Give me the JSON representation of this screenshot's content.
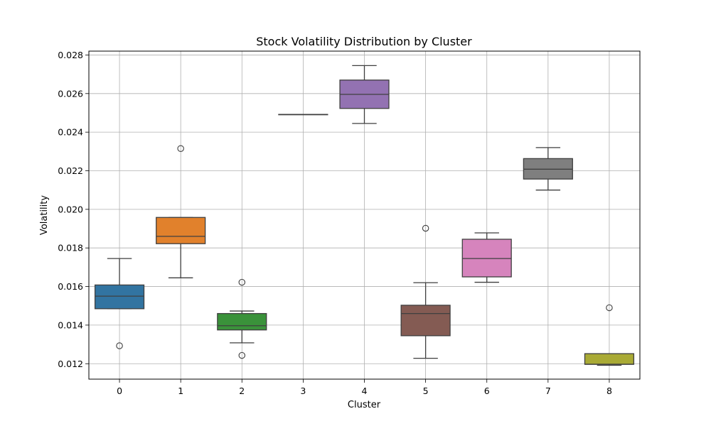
{
  "chart_data": {
    "type": "box",
    "title": "Stock Volatility Distribution by Cluster",
    "xlabel": "Cluster",
    "ylabel": "Volatility",
    "ylim": [
      0.0112,
      0.0282
    ],
    "yticks": [
      "0.012",
      "0.014",
      "0.016",
      "0.018",
      "0.020",
      "0.022",
      "0.024",
      "0.026",
      "0.028"
    ],
    "grid": true,
    "categories": [
      "0",
      "1",
      "2",
      "3",
      "4",
      "5",
      "6",
      "7",
      "8"
    ],
    "boxes": [
      {
        "category": "0",
        "color": "#3274a1",
        "whisker_low": 0.01485,
        "q1": 0.01485,
        "median": 0.0155,
        "q3": 0.01608,
        "whisker_high": 0.01745,
        "outliers": [
          0.01293
        ]
      },
      {
        "category": "1",
        "color": "#e1812c",
        "whisker_low": 0.01645,
        "q1": 0.01822,
        "median": 0.0186,
        "q3": 0.01958,
        "whisker_high": 0.01958,
        "outliers": [
          0.02315
        ]
      },
      {
        "category": "2",
        "color": "#3a923a",
        "whisker_low": 0.01308,
        "q1": 0.01375,
        "median": 0.01397,
        "q3": 0.0146,
        "whisker_high": 0.01473,
        "outliers": [
          0.01622,
          0.01243
        ]
      },
      {
        "category": "3",
        "color": "#c03d3e",
        "whisker_low": 0.02492,
        "q1": 0.02492,
        "median": 0.02492,
        "q3": 0.02492,
        "whisker_high": 0.02492,
        "outliers": []
      },
      {
        "category": "4",
        "color": "#9372b2",
        "whisker_low": 0.02445,
        "q1": 0.02523,
        "median": 0.02596,
        "q3": 0.0267,
        "whisker_high": 0.02745,
        "outliers": []
      },
      {
        "category": "5",
        "color": "#845b53",
        "whisker_low": 0.01228,
        "q1": 0.01345,
        "median": 0.0146,
        "q3": 0.01503,
        "whisker_high": 0.0162,
        "outliers": [
          0.01902
        ]
      },
      {
        "category": "6",
        "color": "#d684bd",
        "whisker_low": 0.01622,
        "q1": 0.0165,
        "median": 0.01745,
        "q3": 0.01845,
        "whisker_high": 0.01878,
        "outliers": []
      },
      {
        "category": "7",
        "color": "#7f7f7f",
        "whisker_low": 0.021,
        "q1": 0.02157,
        "median": 0.02208,
        "q3": 0.02263,
        "whisker_high": 0.0232,
        "outliers": []
      },
      {
        "category": "8",
        "color": "#a9aa35",
        "whisker_low": 0.01192,
        "q1": 0.01197,
        "median": 0.01197,
        "q3": 0.01252,
        "whisker_high": 0.01252,
        "outliers": [
          0.0149
        ]
      }
    ]
  }
}
